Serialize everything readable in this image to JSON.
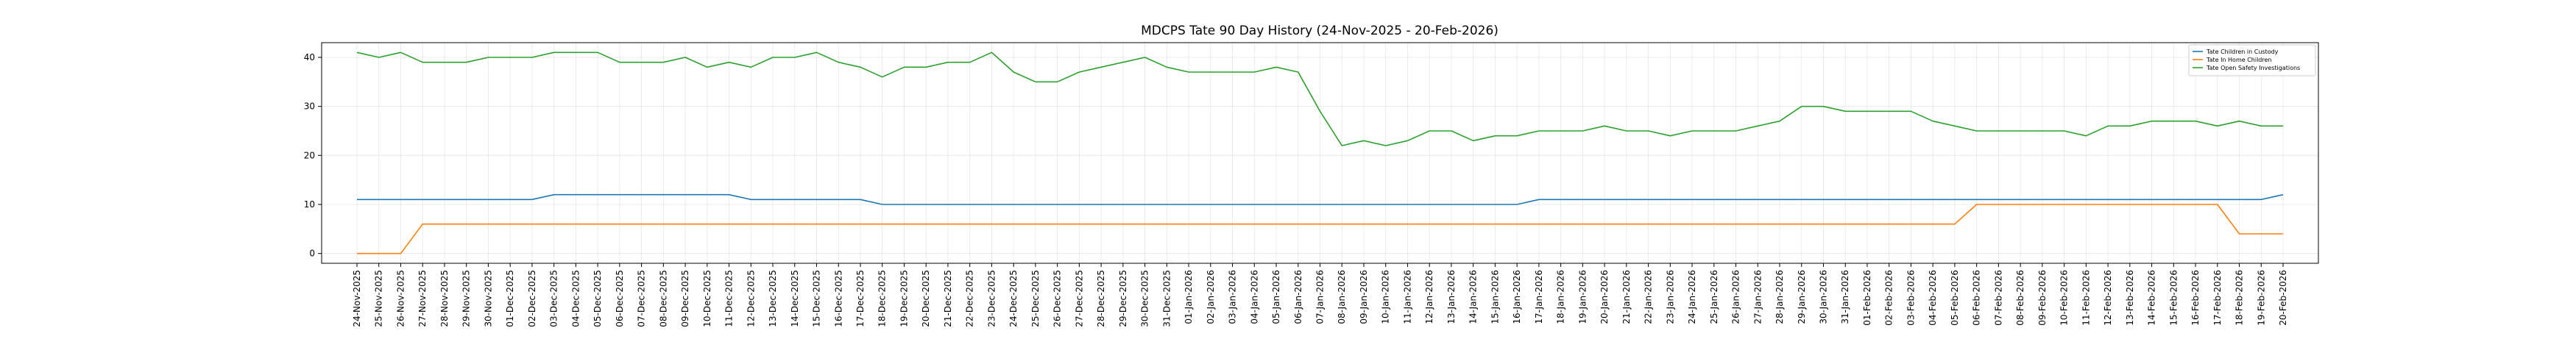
{
  "chart_data": {
    "type": "line",
    "title": "MDCPS Tate 90 Day History (24-Nov-2025 - 20-Feb-2026)",
    "xlabel": "",
    "ylabel": "",
    "ylim": [
      -2,
      43
    ],
    "yticks": [
      0,
      10,
      20,
      30,
      40
    ],
    "grid": true,
    "legend_position": "top-right",
    "x": [
      "24-Nov-2025",
      "25-Nov-2025",
      "26-Nov-2025",
      "27-Nov-2025",
      "28-Nov-2025",
      "29-Nov-2025",
      "30-Nov-2025",
      "01-Dec-2025",
      "02-Dec-2025",
      "03-Dec-2025",
      "04-Dec-2025",
      "05-Dec-2025",
      "06-Dec-2025",
      "07-Dec-2025",
      "08-Dec-2025",
      "09-Dec-2025",
      "10-Dec-2025",
      "11-Dec-2025",
      "12-Dec-2025",
      "13-Dec-2025",
      "14-Dec-2025",
      "15-Dec-2025",
      "16-Dec-2025",
      "17-Dec-2025",
      "18-Dec-2025",
      "19-Dec-2025",
      "20-Dec-2025",
      "21-Dec-2025",
      "22-Dec-2025",
      "23-Dec-2025",
      "24-Dec-2025",
      "25-Dec-2025",
      "26-Dec-2025",
      "27-Dec-2025",
      "28-Dec-2025",
      "29-Dec-2025",
      "30-Dec-2025",
      "31-Dec-2025",
      "01-Jan-2026",
      "02-Jan-2026",
      "03-Jan-2026",
      "04-Jan-2026",
      "05-Jan-2026",
      "06-Jan-2026",
      "07-Jan-2026",
      "08-Jan-2026",
      "09-Jan-2026",
      "10-Jan-2026",
      "11-Jan-2026",
      "12-Jan-2026",
      "13-Jan-2026",
      "14-Jan-2026",
      "15-Jan-2026",
      "16-Jan-2026",
      "17-Jan-2026",
      "18-Jan-2026",
      "19-Jan-2026",
      "20-Jan-2026",
      "21-Jan-2026",
      "22-Jan-2026",
      "23-Jan-2026",
      "24-Jan-2026",
      "25-Jan-2026",
      "26-Jan-2026",
      "27-Jan-2026",
      "28-Jan-2026",
      "29-Jan-2026",
      "30-Jan-2026",
      "31-Jan-2026",
      "01-Feb-2026",
      "02-Feb-2026",
      "03-Feb-2026",
      "04-Feb-2026",
      "05-Feb-2026",
      "06-Feb-2026",
      "07-Feb-2026",
      "08-Feb-2026",
      "09-Feb-2026",
      "10-Feb-2026",
      "11-Feb-2026",
      "12-Feb-2026",
      "13-Feb-2026",
      "14-Feb-2026",
      "15-Feb-2026",
      "16-Feb-2026",
      "17-Feb-2026",
      "18-Feb-2026",
      "19-Feb-2026",
      "20-Feb-2026"
    ],
    "series": [
      {
        "name": "Tate Children in Custody",
        "color": "#1f77b4",
        "values": [
          11,
          11,
          11,
          11,
          11,
          11,
          11,
          11,
          11,
          12,
          12,
          12,
          12,
          12,
          12,
          12,
          12,
          12,
          11,
          11,
          11,
          11,
          11,
          11,
          10,
          10,
          10,
          10,
          10,
          10,
          10,
          10,
          10,
          10,
          10,
          10,
          10,
          10,
          10,
          10,
          10,
          10,
          10,
          10,
          10,
          10,
          10,
          10,
          10,
          10,
          10,
          10,
          10,
          10,
          11,
          11,
          11,
          11,
          11,
          11,
          11,
          11,
          11,
          11,
          11,
          11,
          11,
          11,
          11,
          11,
          11,
          11,
          11,
          11,
          11,
          11,
          11,
          11,
          11,
          11,
          11,
          11,
          11,
          11,
          11,
          11,
          11,
          11,
          12
        ]
      },
      {
        "name": "Tate In Home Children",
        "color": "#ff7f0e",
        "values": [
          0,
          0,
          0,
          6,
          6,
          6,
          6,
          6,
          6,
          6,
          6,
          6,
          6,
          6,
          6,
          6,
          6,
          6,
          6,
          6,
          6,
          6,
          6,
          6,
          6,
          6,
          6,
          6,
          6,
          6,
          6,
          6,
          6,
          6,
          6,
          6,
          6,
          6,
          6,
          6,
          6,
          6,
          6,
          6,
          6,
          6,
          6,
          6,
          6,
          6,
          6,
          6,
          6,
          6,
          6,
          6,
          6,
          6,
          6,
          6,
          6,
          6,
          6,
          6,
          6,
          6,
          6,
          6,
          6,
          6,
          6,
          6,
          6,
          6,
          10,
          10,
          10,
          10,
          10,
          10,
          10,
          10,
          10,
          10,
          10,
          10,
          4,
          4,
          4
        ]
      },
      {
        "name": "Tate Open Safety Investigations",
        "color": "#2ca02c",
        "values": [
          41,
          40,
          41,
          39,
          39,
          39,
          40,
          40,
          40,
          41,
          41,
          41,
          39,
          39,
          39,
          40,
          38,
          39,
          38,
          40,
          40,
          41,
          39,
          38,
          36,
          38,
          38,
          39,
          39,
          41,
          37,
          35,
          35,
          37,
          38,
          39,
          40,
          38,
          37,
          37,
          37,
          37,
          38,
          37,
          29,
          22,
          23,
          22,
          23,
          25,
          25,
          23,
          24,
          24,
          25,
          25,
          25,
          26,
          25,
          25,
          24,
          25,
          25,
          25,
          26,
          27,
          30,
          30,
          29,
          29,
          29,
          29,
          27,
          26,
          25,
          25,
          25,
          25,
          25,
          24,
          26,
          26,
          27,
          27,
          27,
          26,
          27,
          26,
          26
        ]
      }
    ]
  }
}
